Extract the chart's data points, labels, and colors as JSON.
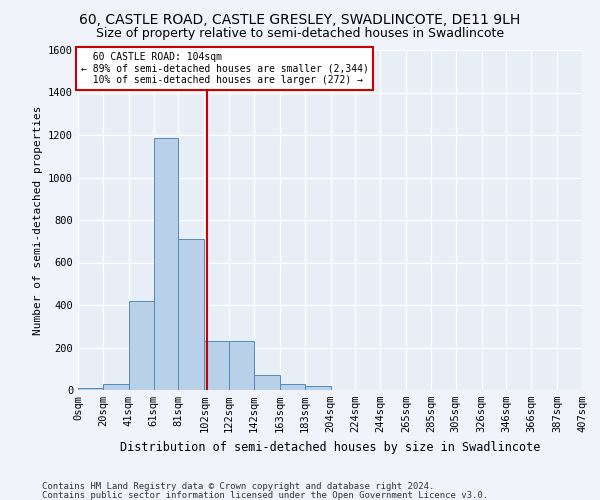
{
  "title1": "60, CASTLE ROAD, CASTLE GRESLEY, SWADLINCOTE, DE11 9LH",
  "title2": "Size of property relative to semi-detached houses in Swadlincote",
  "xlabel": "Distribution of semi-detached houses by size in Swadlincote",
  "ylabel": "Number of semi-detached properties",
  "footer1": "Contains HM Land Registry data © Crown copyright and database right 2024.",
  "footer2": "Contains public sector information licensed under the Open Government Licence v3.0.",
  "annotation_line1": "60 CASTLE ROAD: 104sqm",
  "annotation_line2": "← 89% of semi-detached houses are smaller (2,344)",
  "annotation_line3": "10% of semi-detached houses are larger (272) →",
  "property_size": 104,
  "bin_edges": [
    0,
    20,
    41,
    61,
    81,
    102,
    122,
    142,
    163,
    183,
    204,
    224,
    244,
    265,
    285,
    305,
    326,
    346,
    366,
    387,
    407
  ],
  "bar_heights": [
    10,
    30,
    420,
    1185,
    710,
    230,
    230,
    70,
    30,
    20,
    0,
    0,
    0,
    0,
    0,
    0,
    0,
    0,
    0,
    0
  ],
  "bar_color": "#b8d0e8",
  "bar_edge_color": "#5588bb",
  "vline_color": "#cc0000",
  "vline_x": 104,
  "ylim": [
    0,
    1600
  ],
  "yticks": [
    0,
    200,
    400,
    600,
    800,
    1000,
    1200,
    1400,
    1600
  ],
  "plot_bg_color": "#e8eef6",
  "fig_bg_color": "#f0f4fa",
  "annotation_box_color": "#ffffff",
  "annotation_box_edge": "#cc0000",
  "title1_fontsize": 10,
  "title2_fontsize": 9,
  "xlabel_fontsize": 8.5,
  "ylabel_fontsize": 8,
  "tick_fontsize": 7.5,
  "footer_fontsize": 6.5
}
